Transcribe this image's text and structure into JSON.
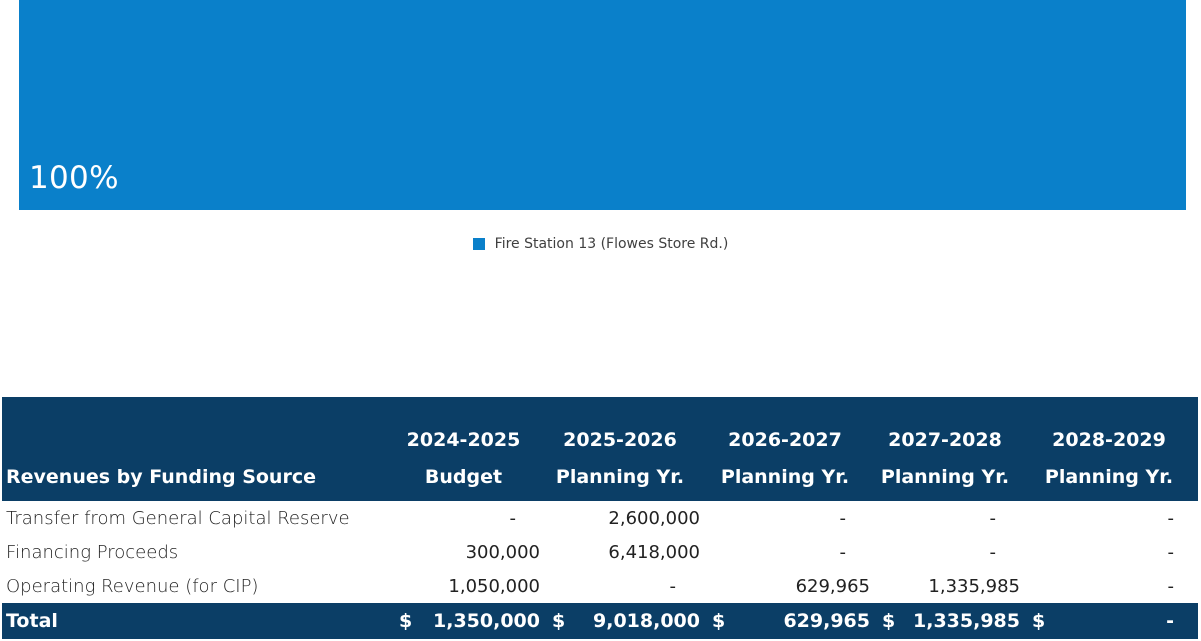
{
  "chart_data": {
    "type": "bar",
    "orientation": "horizontal-stacked-100",
    "categories": [
      ""
    ],
    "series": [
      {
        "name": "Fire Station 13 (Flowes Store Rd.)",
        "values": [
          100
        ]
      }
    ],
    "data_labels": [
      "100%"
    ],
    "colors": {
      "series_1": "#0A80CA"
    },
    "legend_position": "bottom-center"
  },
  "table": {
    "header": {
      "label": "Revenues by Funding Source",
      "columns": [
        {
          "line1": "2024-2025",
          "line2": "Budget"
        },
        {
          "line1": "2025-2026",
          "line2": "Planning Yr."
        },
        {
          "line1": "2026-2027",
          "line2": "Planning Yr."
        },
        {
          "line1": "2027-2028",
          "line2": "Planning Yr."
        },
        {
          "line1": "2028-2029",
          "line2": "Planning Yr."
        }
      ]
    },
    "rows": [
      {
        "label": "Transfer from General Capital Reserve",
        "values": [
          "-",
          "2,600,000",
          "-",
          "-",
          "-"
        ]
      },
      {
        "label": "Financing Proceeds",
        "values": [
          "300,000",
          "6,418,000",
          "-",
          "-",
          "-"
        ]
      },
      {
        "label": "Operating Revenue (for CIP)",
        "values": [
          "1,050,000",
          "-",
          "629,965",
          "1,335,985",
          "-"
        ]
      }
    ],
    "total": {
      "label": "Total",
      "currency": "$",
      "values": [
        "1,350,000",
        "9,018,000",
        "629,965",
        "1,335,985",
        "-"
      ]
    },
    "colors": {
      "header_bg": "#0B3E66",
      "header_text": "#FFFFFF"
    }
  }
}
